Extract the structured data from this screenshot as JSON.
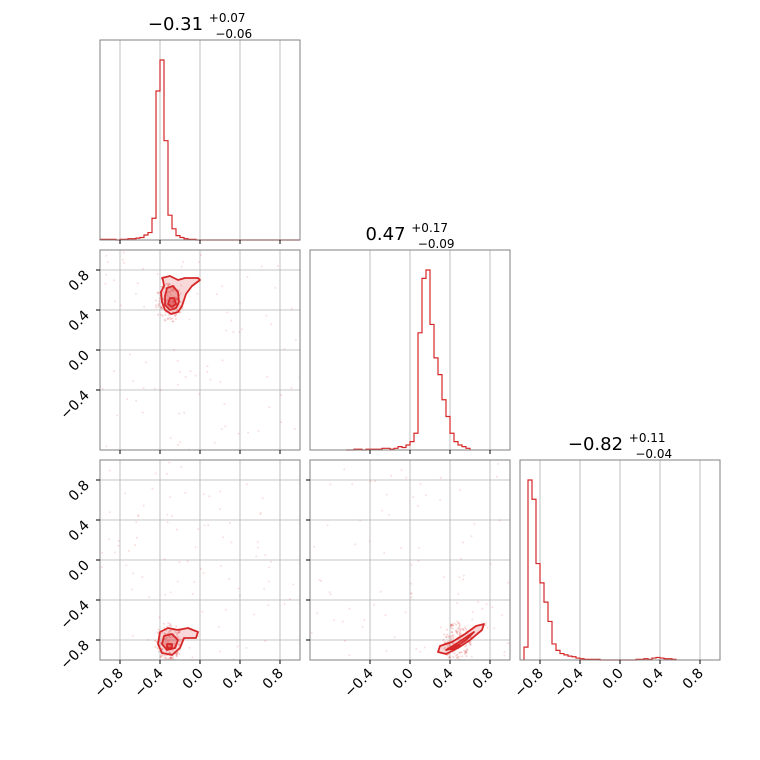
{
  "chart_data": {
    "type": "corner",
    "color": "#d62728",
    "ndim": 3,
    "range": [
      -1.0,
      1.0
    ],
    "ticks": {
      "x0": [
        "−0.8",
        "−0.4",
        "0.0",
        "0.4",
        "0.8"
      ],
      "x1": [
        "−0.4",
        "0.0",
        "0.4",
        "0.8"
      ],
      "x2": [
        "−0.8",
        "−0.4",
        "0.0",
        "0.4",
        "0.8"
      ],
      "y1": [
        "0.8",
        "0.4",
        "0.0",
        "−0.4"
      ],
      "y2": [
        "0.8",
        "0.4",
        "0.0",
        "−0.4",
        "−0.8"
      ]
    },
    "tick_values": {
      "x0": [
        -0.8,
        -0.4,
        0.0,
        0.4,
        0.8
      ],
      "x1": [
        -0.4,
        0.0,
        0.4,
        0.8
      ],
      "x2": [
        -0.8,
        -0.4,
        0.0,
        0.4,
        0.8
      ],
      "y1": [
        0.8,
        0.4,
        0.0,
        -0.4
      ],
      "y2": [
        0.8,
        0.4,
        0.0,
        -0.4,
        -0.8
      ]
    },
    "titles": [
      {
        "median": "−0.31",
        "plus": "+0.07",
        "minus": "−0.06"
      },
      {
        "median": "0.47",
        "plus": "+0.17",
        "minus": "−0.09"
      },
      {
        "median": "−0.82",
        "plus": "+0.11",
        "minus": "−0.04"
      }
    ],
    "histograms": [
      {
        "edges_start": -1.0,
        "bin_width": 0.04,
        "counts": [
          1,
          1,
          1,
          1,
          0,
          1,
          1,
          2,
          2,
          3,
          4,
          8,
          12,
          35,
          240,
          290,
          160,
          40,
          18,
          7,
          4,
          2,
          1,
          1,
          0,
          0,
          0,
          0,
          0,
          0,
          0,
          0,
          0,
          0,
          0,
          0,
          0,
          0,
          0,
          0,
          0,
          0,
          0,
          0,
          0,
          0,
          0,
          0,
          0,
          0
        ]
      },
      {
        "edges_start": -0.64,
        "bin_width": 0.04,
        "counts": [
          0,
          0,
          1,
          1,
          0,
          1,
          1,
          1,
          1,
          2,
          2,
          1,
          2,
          4,
          3,
          6,
          10,
          20,
          140,
          205,
          215,
          150,
          110,
          90,
          60,
          40,
          20,
          10,
          6,
          4,
          2
        ]
      },
      {
        "edges_start": -0.96,
        "bin_width": 0.04,
        "counts": [
          20,
          280,
          250,
          150,
          120,
          90,
          60,
          25,
          15,
          10,
          8,
          6,
          5,
          3,
          2,
          1,
          1,
          1,
          1,
          0,
          0,
          0,
          0,
          0,
          0,
          0,
          0,
          0,
          1,
          1,
          2,
          1,
          3,
          4,
          3,
          2,
          2,
          1
        ]
      }
    ],
    "contours": [
      {
        "panel": "1-0",
        "center": [
          -0.31,
          0.47
        ],
        "levels": [
          [
            [
              -0.38,
              0.72
            ],
            [
              -0.3,
              0.74
            ],
            [
              -0.22,
              0.7
            ],
            [
              -0.15,
              0.72
            ],
            [
              -0.02,
              0.72
            ],
            [
              0.0,
              0.7
            ],
            [
              -0.08,
              0.64
            ],
            [
              -0.14,
              0.56
            ],
            [
              -0.18,
              0.44
            ],
            [
              -0.22,
              0.38
            ],
            [
              -0.29,
              0.36
            ],
            [
              -0.35,
              0.4
            ],
            [
              -0.38,
              0.48
            ],
            [
              -0.39,
              0.58
            ],
            [
              -0.36,
              0.64
            ],
            [
              -0.37,
              0.7
            ]
          ],
          [
            [
              -0.33,
              0.62
            ],
            [
              -0.27,
              0.64
            ],
            [
              -0.22,
              0.58
            ],
            [
              -0.21,
              0.48
            ],
            [
              -0.24,
              0.42
            ],
            [
              -0.3,
              0.4
            ],
            [
              -0.35,
              0.45
            ],
            [
              -0.35,
              0.54
            ]
          ],
          [
            [
              -0.3,
              0.52
            ],
            [
              -0.26,
              0.52
            ],
            [
              -0.24,
              0.46
            ],
            [
              -0.28,
              0.43
            ],
            [
              -0.32,
              0.46
            ]
          ]
        ]
      },
      {
        "panel": "2-0",
        "center": [
          -0.31,
          -0.82
        ],
        "levels": [
          [
            [
              -0.4,
              -0.72
            ],
            [
              -0.32,
              -0.68
            ],
            [
              -0.22,
              -0.7
            ],
            [
              -0.12,
              -0.68
            ],
            [
              -0.02,
              -0.72
            ],
            [
              -0.04,
              -0.78
            ],
            [
              -0.16,
              -0.78
            ],
            [
              -0.2,
              -0.88
            ],
            [
              -0.28,
              -0.95
            ],
            [
              -0.38,
              -0.93
            ],
            [
              -0.42,
              -0.84
            ]
          ],
          [
            [
              -0.36,
              -0.76
            ],
            [
              -0.28,
              -0.74
            ],
            [
              -0.22,
              -0.8
            ],
            [
              -0.25,
              -0.88
            ],
            [
              -0.33,
              -0.9
            ],
            [
              -0.38,
              -0.84
            ]
          ],
          [
            [
              -0.33,
              -0.84
            ],
            [
              -0.28,
              -0.84
            ],
            [
              -0.28,
              -0.88
            ],
            [
              -0.33,
              -0.88
            ]
          ]
        ]
      },
      {
        "panel": "2-1",
        "center": [
          0.47,
          -0.82
        ],
        "levels": [
          [
            [
              0.28,
              -0.92
            ],
            [
              0.3,
              -0.86
            ],
            [
              0.42,
              -0.82
            ],
            [
              0.55,
              -0.74
            ],
            [
              0.66,
              -0.66
            ],
            [
              0.74,
              -0.64
            ],
            [
              0.72,
              -0.7
            ],
            [
              0.6,
              -0.8
            ],
            [
              0.48,
              -0.88
            ],
            [
              0.36,
              -0.94
            ]
          ],
          [
            [
              0.36,
              -0.9
            ],
            [
              0.46,
              -0.84
            ],
            [
              0.58,
              -0.76
            ],
            [
              0.64,
              -0.72
            ],
            [
              0.56,
              -0.8
            ],
            [
              0.44,
              -0.88
            ]
          ],
          [
            [
              0.4,
              -0.89
            ],
            [
              0.47,
              -0.85
            ],
            [
              0.5,
              -0.86
            ],
            [
              0.44,
              -0.9
            ]
          ]
        ]
      }
    ]
  }
}
